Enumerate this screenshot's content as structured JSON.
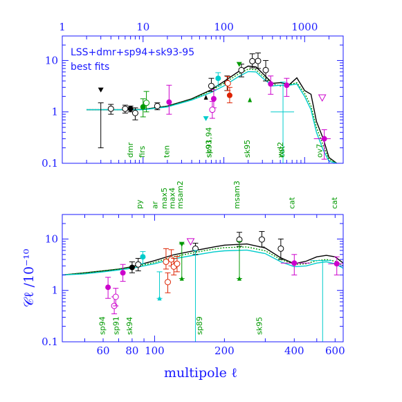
{
  "chart_data": [
    {
      "type": "scatter",
      "panel": "top",
      "title": "LSS+dmr+sp94+sk93-95",
      "subtitle": "best fits",
      "x_scale": "log",
      "y_scale": "log",
      "xlim": [
        1,
        3000
      ],
      "ylim": [
        0.1,
        30
      ],
      "x_ticks": [
        "1",
        "10",
        "100",
        "1000"
      ],
      "y_ticks": [
        "0.1",
        "1",
        "10"
      ],
      "experiment_labels": [
        {
          "text": "dmr",
          "x": 7.5
        },
        {
          "text": "firs",
          "x": 10.5
        },
        {
          "text": "ten",
          "x": 21
        },
        {
          "text": "sp91,94",
          "x": 70
        },
        {
          "text": "sk93",
          "x": 70
        },
        {
          "text": "sk95",
          "x": 210
        },
        {
          "text": "cat",
          "x": 560
        },
        {
          "text": "wd2",
          "x": 540
        },
        {
          "text": "ov7",
          "x": 1650
        }
      ],
      "series": [
        {
          "style": "solid",
          "color": "#000000",
          "x": [
            2,
            5,
            10,
            20,
            40,
            70,
            100,
            150,
            200,
            250,
            300,
            400,
            500,
            650,
            800,
            1000,
            1200,
            1400,
            1700,
            2000,
            2500
          ],
          "y": [
            1.1,
            1.1,
            1.12,
            1.3,
            1.8,
            2.7,
            3.9,
            6.0,
            7.8,
            7.5,
            5.7,
            3.6,
            3.7,
            3.4,
            4.6,
            2.6,
            2.2,
            0.65,
            0.3,
            0.13,
            0.1
          ]
        },
        {
          "style": "dotted",
          "color": "#009900",
          "x": [
            2,
            5,
            10,
            20,
            40,
            70,
            100,
            150,
            200,
            250,
            300,
            400,
            500,
            650,
            800,
            1000,
            1200,
            1400,
            1700,
            2000,
            2500
          ],
          "y": [
            1.1,
            1.1,
            1.11,
            1.28,
            1.75,
            2.6,
            3.6,
            5.4,
            6.8,
            6.6,
            5.1,
            3.5,
            3.2,
            3.4,
            3.7,
            2.3,
            1.3,
            0.5,
            0.22,
            0.12,
            0.1
          ]
        },
        {
          "style": "solid",
          "color": "#00cccc",
          "x": [
            2,
            5,
            10,
            20,
            40,
            70,
            100,
            150,
            200,
            250,
            300,
            400,
            500,
            650,
            800,
            1000,
            1200,
            1400,
            1700,
            2000,
            2500
          ],
          "y": [
            1.1,
            1.1,
            1.1,
            1.25,
            1.7,
            2.4,
            3.2,
            4.8,
            6.1,
            6.0,
            4.6,
            3.2,
            3.3,
            3.3,
            3.5,
            2.0,
            1.1,
            0.4,
            0.18,
            0.11,
            0.1
          ]
        }
      ],
      "points": [
        {
          "marker": "triangle-down-filled",
          "color": "#000000",
          "x": 3,
          "y": 2.7
        },
        {
          "marker": "bar",
          "color": "#000000",
          "x": 3,
          "y": 1.1,
          "ylow": 0.2,
          "yhigh": 1.5
        },
        {
          "marker": "circle-open",
          "color": "#000000",
          "x": 4,
          "y": 1.15,
          "ylow": 0.9,
          "yhigh": 1.4
        },
        {
          "marker": "circle-open",
          "color": "#000000",
          "x": 6,
          "y": 1.15,
          "ylow": 0.95,
          "yhigh": 1.35
        },
        {
          "marker": "circle-filled",
          "color": "#000000",
          "x": 7,
          "y": 1.15,
          "ylow": 1.0,
          "yhigh": 1.3
        },
        {
          "marker": "circle-open",
          "color": "#000000",
          "x": 8,
          "y": 0.95,
          "ylow": 0.7,
          "yhigh": 1.2
        },
        {
          "marker": "circle-filled",
          "color": "#009900",
          "x": 10,
          "y": 1.25,
          "ylow": 0.8,
          "yhigh": 1.8
        },
        {
          "marker": "circle-open",
          "color": "#009900",
          "x": 11,
          "y": 1.5,
          "ylow": 1.0,
          "yhigh": 2.5
        },
        {
          "marker": "circle-open",
          "color": "#000000",
          "x": 15,
          "y": 1.3,
          "ylow": 1.1,
          "yhigh": 1.5
        },
        {
          "marker": "circle-filled",
          "color": "#cc00cc",
          "x": 21,
          "y": 1.55,
          "ylow": 0.9,
          "yhigh": 3.3
        },
        {
          "marker": "triangle-up-filled",
          "color": "#000000",
          "x": 60,
          "y": 1.9
        },
        {
          "marker": "circle-open",
          "color": "#000000",
          "x": 70,
          "y": 3.2,
          "ylow": 2.5,
          "yhigh": 4.5
        },
        {
          "marker": "circle-filled",
          "color": "#cc00cc",
          "x": 75,
          "y": 1.8,
          "ylow": 1.2,
          "yhigh": 2.7
        },
        {
          "marker": "circle-open",
          "color": "#cc00cc",
          "x": 72,
          "y": 1.1,
          "ylow": 0.75,
          "yhigh": 1.6
        },
        {
          "marker": "circle-filled",
          "color": "#00cccc",
          "x": 85,
          "y": 4.5,
          "ylow": 3.2,
          "yhigh": 5.8
        },
        {
          "marker": "triangle-down-filled",
          "color": "#00cccc",
          "x": 60,
          "y": 0.75
        },
        {
          "marker": "circle-open",
          "color": "#000000",
          "x": 110,
          "y": 3.7,
          "ylow": 2.6,
          "yhigh": 5.0
        },
        {
          "marker": "circle-filled",
          "color": "#dd2200",
          "x": 118,
          "y": 2.1,
          "ylow": 1.5,
          "yhigh": 3.0
        },
        {
          "marker": "circle-open",
          "color": "#dd2200",
          "x": 112,
          "y": 3.6,
          "ylow": 2.6,
          "yhigh": 4.9
        },
        {
          "marker": "circle-open",
          "color": "#000000",
          "x": 165,
          "y": 6.5,
          "ylow": 4.8,
          "yhigh": 8.5
        },
        {
          "marker": "triangle-down-filled",
          "color": "#009900",
          "x": 155,
          "y": 8.5
        },
        {
          "marker": "triangle-up-filled",
          "color": "#009900",
          "x": 210,
          "y": 1.7
        },
        {
          "marker": "circle-open",
          "color": "#000000",
          "x": 225,
          "y": 9.7,
          "ylow": 7.2,
          "yhigh": 13.5
        },
        {
          "marker": "circle-open",
          "color": "#000000",
          "x": 265,
          "y": 9.8,
          "ylow": 7.0,
          "yhigh": 14.0
        },
        {
          "marker": "circle-open",
          "color": "#000000",
          "x": 330,
          "y": 6.5,
          "ylow": 4.0,
          "yhigh": 10.0
        },
        {
          "marker": "circle-filled",
          "color": "#cc00cc",
          "x": 380,
          "y": 3.5,
          "ylow": 2.2,
          "yhigh": 5.0
        },
        {
          "marker": "bar",
          "color": "#00cccc",
          "x": 540,
          "y": 1.0,
          "ylow": 0.1,
          "yhigh": 3.8,
          "xlow": 380,
          "xhigh": 740
        },
        {
          "marker": "circle-filled",
          "color": "#cc00cc",
          "x": 600,
          "y": 3.3,
          "ylow": 2.0,
          "yhigh": 4.5
        },
        {
          "marker": "triangle-down-open",
          "color": "#cc00cc",
          "x": 1650,
          "y": 1.9
        },
        {
          "marker": "circle-filled",
          "color": "#cc00cc",
          "x": 1750,
          "y": 0.3,
          "ylow": 0.12,
          "yhigh": 0.45,
          "xlow": 1300,
          "xhigh": 2100
        }
      ]
    },
    {
      "type": "scatter",
      "panel": "bottom",
      "xlabel": "multipole ℓ",
      "ylabel": "𝒞ℓ  /10⁻¹⁰",
      "x_scale": "log",
      "y_scale": "log",
      "xlim": [
        40,
        650
      ],
      "ylim": [
        0.1,
        30
      ],
      "x_ticks": [
        "60",
        "80",
        "100",
        "200",
        "400",
        "600"
      ],
      "y_ticks": [
        "0.1",
        "1",
        "10"
      ],
      "experiment_labels_top": [
        {
          "text": "py",
          "x": 88
        },
        {
          "text": "ar",
          "x": 103
        },
        {
          "text": "max5",
          "x": 113
        },
        {
          "text": "max4",
          "x": 122
        },
        {
          "text": "msam2",
          "x": 132
        },
        {
          "text": "msam3",
          "x": 232
        },
        {
          "text": "cat",
          "x": 400
        },
        {
          "text": "cat",
          "x": 610
        }
      ],
      "experiment_labels_inside": [
        {
          "text": "sk94",
          "x": 80
        },
        {
          "text": "sk95",
          "x": 290
        },
        {
          "text": "sp94",
          "x": 61
        },
        {
          "text": "sp91",
          "x": 70
        },
        {
          "text": "sp89",
          "x": 160
        }
      ],
      "series": [
        {
          "style": "solid",
          "color": "#000000",
          "x": [
            40,
            50,
            60,
            70,
            80,
            100,
            120,
            150,
            180,
            200,
            250,
            300,
            350,
            400,
            450,
            500,
            550,
            600,
            650
          ],
          "y": [
            2.0,
            2.2,
            2.4,
            2.6,
            2.9,
            3.8,
            4.9,
            6.0,
            7.0,
            7.6,
            8.0,
            6.7,
            4.3,
            3.3,
            3.7,
            4.5,
            4.8,
            4.5,
            3.4
          ]
        },
        {
          "style": "dotted",
          "color": "#009900",
          "x": [
            40,
            50,
            60,
            70,
            80,
            100,
            120,
            150,
            180,
            200,
            250,
            300,
            350,
            400,
            450,
            500,
            550,
            600,
            650
          ],
          "y": [
            2.0,
            2.2,
            2.4,
            2.6,
            2.8,
            3.5,
            4.5,
            5.5,
            6.4,
            6.8,
            7.0,
            5.9,
            4.0,
            3.2,
            3.3,
            3.8,
            4.0,
            3.7,
            3.0
          ]
        },
        {
          "style": "solid",
          "color": "#00cccc",
          "x": [
            40,
            50,
            60,
            70,
            80,
            100,
            120,
            150,
            180,
            200,
            250,
            300,
            350,
            400,
            450,
            500,
            550,
            600,
            650
          ],
          "y": [
            2.0,
            2.1,
            2.3,
            2.5,
            2.7,
            3.3,
            4.1,
            4.9,
            5.6,
            5.9,
            6.1,
            5.2,
            3.6,
            2.9,
            3.0,
            3.4,
            3.6,
            3.3,
            2.7
          ]
        }
      ],
      "points": [
        {
          "marker": "circle-filled",
          "color": "#cc00cc",
          "x": 63,
          "y": 1.15,
          "ylow": 0.7,
          "yhigh": 1.8
        },
        {
          "marker": "circle-open",
          "color": "#cc00cc",
          "x": 67,
          "y": 0.5,
          "ylow": 0.35,
          "yhigh": 0.75
        },
        {
          "marker": "circle-open",
          "color": "#cc00cc",
          "x": 68,
          "y": 0.75,
          "ylow": 0.5,
          "yhigh": 1.1
        },
        {
          "marker": "circle-filled",
          "color": "#cc00cc",
          "x": 73,
          "y": 2.2,
          "ylow": 1.5,
          "yhigh": 3.2
        },
        {
          "marker": "circle-filled",
          "color": "#000000",
          "x": 80,
          "y": 2.8,
          "ylow": 2.2,
          "yhigh": 3.6
        },
        {
          "marker": "circle-open",
          "color": "#000000",
          "x": 85,
          "y": 3.2,
          "ylow": 2.4,
          "yhigh": 4.2
        },
        {
          "marker": "circle-filled",
          "color": "#00cccc",
          "x": 89,
          "y": 4.5,
          "ylow": 3.3,
          "yhigh": 5.7
        },
        {
          "marker": "triangle-up-filled",
          "color": "#00cccc",
          "x": 105,
          "y": 0.7,
          "ylow": 0.7,
          "yhigh": 2.3
        },
        {
          "marker": "circle-open",
          "color": "#dd2200",
          "x": 112,
          "y": 3.6,
          "ylow": 2.6,
          "yhigh": 6.5
        },
        {
          "marker": "circle-open",
          "color": "#dd2200",
          "x": 114,
          "y": 1.45,
          "ylow": 0.9,
          "yhigh": 2.2
        },
        {
          "marker": "circle-open",
          "color": "#dd2200",
          "x": 118,
          "y": 4.0,
          "ylow": 3.0,
          "yhigh": 6.2
        },
        {
          "marker": "circle-open",
          "color": "#dd2200",
          "x": 121,
          "y": 2.9,
          "ylow": 2.0,
          "yhigh": 4.2
        },
        {
          "marker": "circle-open",
          "color": "#dd2200",
          "x": 125,
          "y": 3.3,
          "ylow": 2.3,
          "yhigh": 4.6
        },
        {
          "marker": "triangle-down-filled",
          "color": "#009900",
          "x": 131,
          "y": 8.0
        },
        {
          "marker": "triangle-up-filled",
          "color": "#009900",
          "x": 131,
          "y": 1.7,
          "ylow": 1.7,
          "yhigh": 8.0
        },
        {
          "marker": "triangle-down-open",
          "color": "#cc00cc",
          "x": 143,
          "y": 9.0
        },
        {
          "marker": "circle-open",
          "color": "#000000",
          "x": 150,
          "y": 6.5,
          "ylow": 5.0,
          "yhigh": 8.3
        },
        {
          "marker": "bar",
          "color": "#00cccc",
          "x": 150,
          "y": 6.0,
          "ylow": 0.1,
          "yhigh": 6.0
        },
        {
          "marker": "circle-open",
          "color": "#000000",
          "x": 232,
          "y": 9.7,
          "ylow": 7.2,
          "yhigh": 13.5
        },
        {
          "marker": "triangle-up-filled",
          "color": "#009900",
          "x": 232,
          "y": 1.7,
          "ylow": 1.7,
          "yhigh": 9.0
        },
        {
          "marker": "circle-open",
          "color": "#000000",
          "x": 290,
          "y": 9.8,
          "ylow": 7.0,
          "yhigh": 14.0
        },
        {
          "marker": "circle-open",
          "color": "#000000",
          "x": 350,
          "y": 6.5,
          "ylow": 4.0,
          "yhigh": 10.0
        },
        {
          "marker": "circle-filled",
          "color": "#cc00cc",
          "x": 400,
          "y": 3.4,
          "ylow": 2.0,
          "yhigh": 5.0,
          "xlow": 350,
          "xhigh": 470
        },
        {
          "marker": "bar",
          "color": "#00cccc",
          "x": 530,
          "y": 3.8,
          "ylow": 0.1,
          "yhigh": 3.8,
          "xlow": 470,
          "xhigh": 580
        },
        {
          "marker": "circle-filled",
          "color": "#cc00cc",
          "x": 610,
          "y": 3.3,
          "ylow": 2.0,
          "yhigh": 4.5,
          "xlow": 560,
          "xhigh": 650
        }
      ]
    }
  ]
}
